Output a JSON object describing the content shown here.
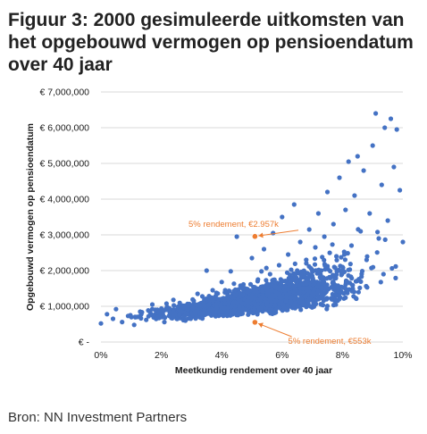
{
  "figure": {
    "title": "Figuur 3: 2000 gesimuleerde uitkomsten van het opgebouwd vermogen op pensioendatum over 40 jaar",
    "source": "Bron: NN Investment Partners"
  },
  "colors": {
    "points": "#4472c4",
    "annotation": "#ed7d31",
    "grid": "#d9d9d9",
    "axis_text": "#1a1a1a"
  },
  "chart_data": {
    "type": "scatter",
    "xlabel": "Meetkundig rendement over 40 jaar",
    "ylabel": "Opgebouwd vermogen op pensioendatum",
    "xlim": [
      0,
      0.1
    ],
    "ylim": [
      0,
      7000000
    ],
    "x_ticks": [
      0,
      0.02,
      0.04,
      0.06,
      0.08,
      0.1
    ],
    "x_tick_labels": [
      "0%",
      "2%",
      "4%",
      "6%",
      "8%",
      "10%"
    ],
    "y_ticks": [
      0,
      1000000,
      2000000,
      3000000,
      4000000,
      5000000,
      6000000,
      7000000
    ],
    "y_tick_labels": [
      "€ -",
      "€ 1,000,000",
      "€ 2,000,000",
      "€ 3,000,000",
      "€ 4,000,000",
      "€ 5,000,000",
      "€ 6,000,000",
      "€ 7,000,000"
    ],
    "grid": "horizontal",
    "n_simulations": 2000,
    "simulation_rule": "points follow a band around an exponential trend that rises from about €600k at 0% to about €2.2M at 10%, with spread growing with return",
    "points": [
      [
        0.0,
        520000
      ],
      [
        0.002,
        780000
      ],
      [
        0.004,
        650000
      ],
      [
        0.005,
        920000
      ],
      [
        0.007,
        560000
      ],
      [
        0.009,
        730000
      ],
      [
        0.011,
        480000
      ],
      [
        0.013,
        850000
      ],
      [
        0.015,
        620000
      ],
      [
        0.017,
        1050000
      ],
      [
        0.019,
        700000
      ],
      [
        0.021,
        560000
      ],
      [
        0.022,
        900000
      ],
      [
        0.024,
        1180000
      ],
      [
        0.026,
        760000
      ],
      [
        0.028,
        600000
      ],
      [
        0.029,
        1020000
      ],
      [
        0.031,
        820000
      ],
      [
        0.032,
        1350000
      ],
      [
        0.033,
        680000
      ],
      [
        0.034,
        1120000
      ],
      [
        0.035,
        2000000
      ],
      [
        0.036,
        880000
      ],
      [
        0.037,
        1450000
      ],
      [
        0.038,
        720000
      ],
      [
        0.039,
        1200000
      ],
      [
        0.04,
        1680000
      ],
      [
        0.041,
        950000
      ],
      [
        0.042,
        1300000
      ],
      [
        0.043,
        1980000
      ],
      [
        0.044,
        820000
      ],
      [
        0.045,
        2950000
      ],
      [
        0.046,
        1150000
      ],
      [
        0.047,
        1550000
      ],
      [
        0.048,
        900000
      ],
      [
        0.049,
        1420000
      ],
      [
        0.05,
        2350000
      ],
      [
        0.051,
        1050000
      ],
      [
        0.052,
        1750000
      ],
      [
        0.053,
        1250000
      ],
      [
        0.054,
        2600000
      ],
      [
        0.055,
        1100000
      ],
      [
        0.056,
        1900000
      ],
      [
        0.057,
        3050000
      ],
      [
        0.058,
        1350000
      ],
      [
        0.059,
        2150000
      ],
      [
        0.06,
        3500000
      ],
      [
        0.061,
        1550000
      ],
      [
        0.062,
        2450000
      ],
      [
        0.063,
        1250000
      ],
      [
        0.064,
        3850000
      ],
      [
        0.065,
        2000000
      ],
      [
        0.066,
        2800000
      ],
      [
        0.067,
        1500000
      ],
      [
        0.068,
        2300000
      ],
      [
        0.069,
        3150000
      ],
      [
        0.07,
        1700000
      ],
      [
        0.071,
        2650000
      ],
      [
        0.072,
        3600000
      ],
      [
        0.073,
        2000000
      ],
      [
        0.074,
        2950000
      ],
      [
        0.075,
        4200000
      ],
      [
        0.076,
        1800000
      ],
      [
        0.077,
        3300000
      ],
      [
        0.078,
        2400000
      ],
      [
        0.079,
        4600000
      ],
      [
        0.08,
        2100000
      ],
      [
        0.081,
        3700000
      ],
      [
        0.082,
        5050000
      ],
      [
        0.083,
        2700000
      ],
      [
        0.084,
        4100000
      ],
      [
        0.085,
        5200000
      ],
      [
        0.086,
        3100000
      ],
      [
        0.087,
        4800000
      ],
      [
        0.088,
        2300000
      ],
      [
        0.089,
        3600000
      ],
      [
        0.09,
        5500000
      ],
      [
        0.091,
        6400000
      ],
      [
        0.092,
        2900000
      ],
      [
        0.093,
        4400000
      ],
      [
        0.094,
        6000000
      ],
      [
        0.095,
        3400000
      ],
      [
        0.096,
        6250000
      ],
      [
        0.097,
        4900000
      ],
      [
        0.098,
        5950000
      ],
      [
        0.099,
        4250000
      ],
      [
        0.1,
        2800000
      ]
    ],
    "annotations": [
      {
        "label": "5% rendement, €2.957k",
        "x": 0.051,
        "y": 2957000,
        "text_x": 0.029,
        "text_y": 3230000
      },
      {
        "label": "5% rendement, €553k",
        "x": 0.051,
        "y": 553000,
        "text_x": 0.062,
        "text_y": -50000
      }
    ]
  }
}
